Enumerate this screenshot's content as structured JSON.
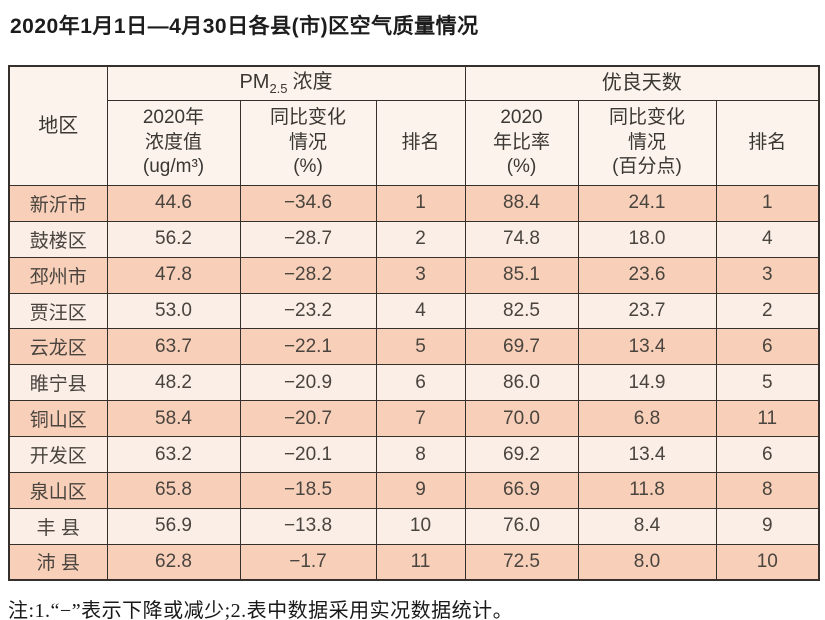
{
  "page": {
    "title": "2020年1月1日—4月30日各县(市)区空气质量情况",
    "footnote": "注:1.“−”表示下降或减少;2.表中数据采用实况数据统计。"
  },
  "colors": {
    "row_odd": "#f8d0ba",
    "row_even": "#faeee7",
    "header_bg": "#fbf3ec",
    "border": "#35302c",
    "text": "#4a443e"
  },
  "table": {
    "header": {
      "region": "地区",
      "group_pm25": {
        "prefix": "PM",
        "sub": "2.5",
        "suffix": "浓度"
      },
      "group_good_days": "优良天数",
      "col_conc_lines": [
        "2020年",
        "浓度值",
        "(ug/m³)"
      ],
      "col_conc_change_lines": [
        "同比变化",
        "情况",
        "(%)"
      ],
      "col_rank1": "排名",
      "col_ratio_lines": [
        "2020",
        "年比率",
        "(%)"
      ],
      "col_ratio_change_lines": [
        "同比变化",
        "情况",
        "(百分点)"
      ],
      "col_rank2": "排名"
    },
    "rows": [
      {
        "region": "新沂市",
        "conc": "44.6",
        "conc_change": "−34.6",
        "rank1": "1",
        "ratio": "88.4",
        "ratio_change": "24.1",
        "rank2": "1"
      },
      {
        "region": "鼓楼区",
        "conc": "56.2",
        "conc_change": "−28.7",
        "rank1": "2",
        "ratio": "74.8",
        "ratio_change": "18.0",
        "rank2": "4"
      },
      {
        "region": "邳州市",
        "conc": "47.8",
        "conc_change": "−28.2",
        "rank1": "3",
        "ratio": "85.1",
        "ratio_change": "23.6",
        "rank2": "3"
      },
      {
        "region": "贾汪区",
        "conc": "53.0",
        "conc_change": "−23.2",
        "rank1": "4",
        "ratio": "82.5",
        "ratio_change": "23.7",
        "rank2": "2"
      },
      {
        "region": "云龙区",
        "conc": "63.7",
        "conc_change": "−22.1",
        "rank1": "5",
        "ratio": "69.7",
        "ratio_change": "13.4",
        "rank2": "6"
      },
      {
        "region": "睢宁县",
        "conc": "48.2",
        "conc_change": "−20.9",
        "rank1": "6",
        "ratio": "86.0",
        "ratio_change": "14.9",
        "rank2": "5"
      },
      {
        "region": "铜山区",
        "conc": "58.4",
        "conc_change": "−20.7",
        "rank1": "7",
        "ratio": "70.0",
        "ratio_change": "6.8",
        "rank2": "11"
      },
      {
        "region": "开发区",
        "conc": "63.2",
        "conc_change": "−20.1",
        "rank1": "8",
        "ratio": "69.2",
        "ratio_change": "13.4",
        "rank2": "6"
      },
      {
        "region": "泉山区",
        "conc": "65.8",
        "conc_change": "−18.5",
        "rank1": "9",
        "ratio": "66.9",
        "ratio_change": "11.8",
        "rank2": "8"
      },
      {
        "region": "丰 县",
        "conc": "56.9",
        "conc_change": "−13.8",
        "rank1": "10",
        "ratio": "76.0",
        "ratio_change": "8.4",
        "rank2": "9"
      },
      {
        "region": "沛 县",
        "conc": "62.8",
        "conc_change": "−1.7",
        "rank1": "11",
        "ratio": "72.5",
        "ratio_change": "8.0",
        "rank2": "10"
      }
    ]
  }
}
